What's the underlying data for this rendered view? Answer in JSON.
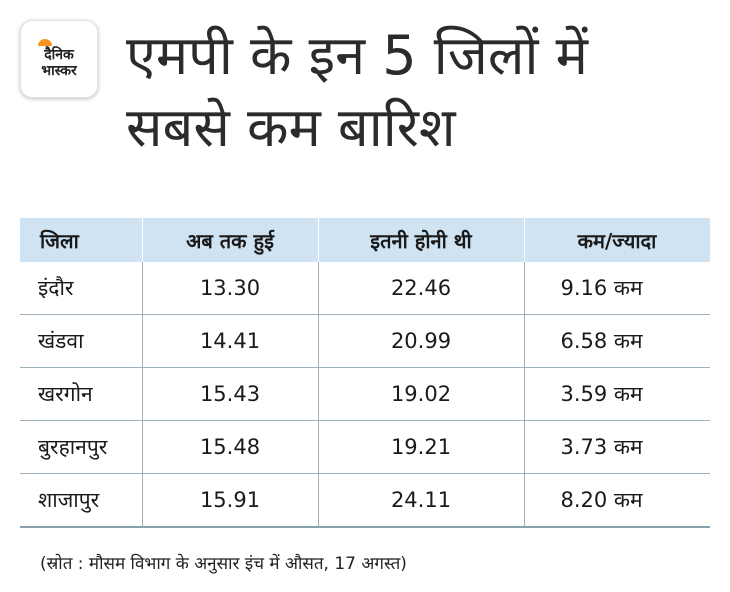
{
  "logo": {
    "line1": "दैनिक",
    "line2": "भास्कर",
    "sun_color": "#f7941d"
  },
  "title": {
    "line1": "एमपी के इन 5 जिलों में",
    "line2": "सबसे कम बारिश"
  },
  "chart_data": {
    "type": "table",
    "columns": [
      "जिला",
      "अब तक हुई",
      "इतनी होनी थी",
      "कम/ज्यादा"
    ],
    "rows": [
      {
        "district": "इंदौर",
        "so_far": "13.30",
        "expected": "22.46",
        "diff": "9.16 कम"
      },
      {
        "district": "खंडवा",
        "so_far": "14.41",
        "expected": "20.99",
        "diff": "6.58 कम"
      },
      {
        "district": "खरगोन",
        "so_far": "15.43",
        "expected": "19.02",
        "diff": "3.59 कम"
      },
      {
        "district": "बुरहानपुर",
        "so_far": "15.48",
        "expected": "19.21",
        "diff": "3.73 कम"
      },
      {
        "district": "शाजापुर",
        "so_far": "15.91",
        "expected": "24.11",
        "diff": "8.20 कम"
      }
    ],
    "header_color": "#cfe3f2"
  },
  "source": "(स्रोत : मौसम विभाग के अनुसार इंच में औसत, 17 अगस्त)"
}
